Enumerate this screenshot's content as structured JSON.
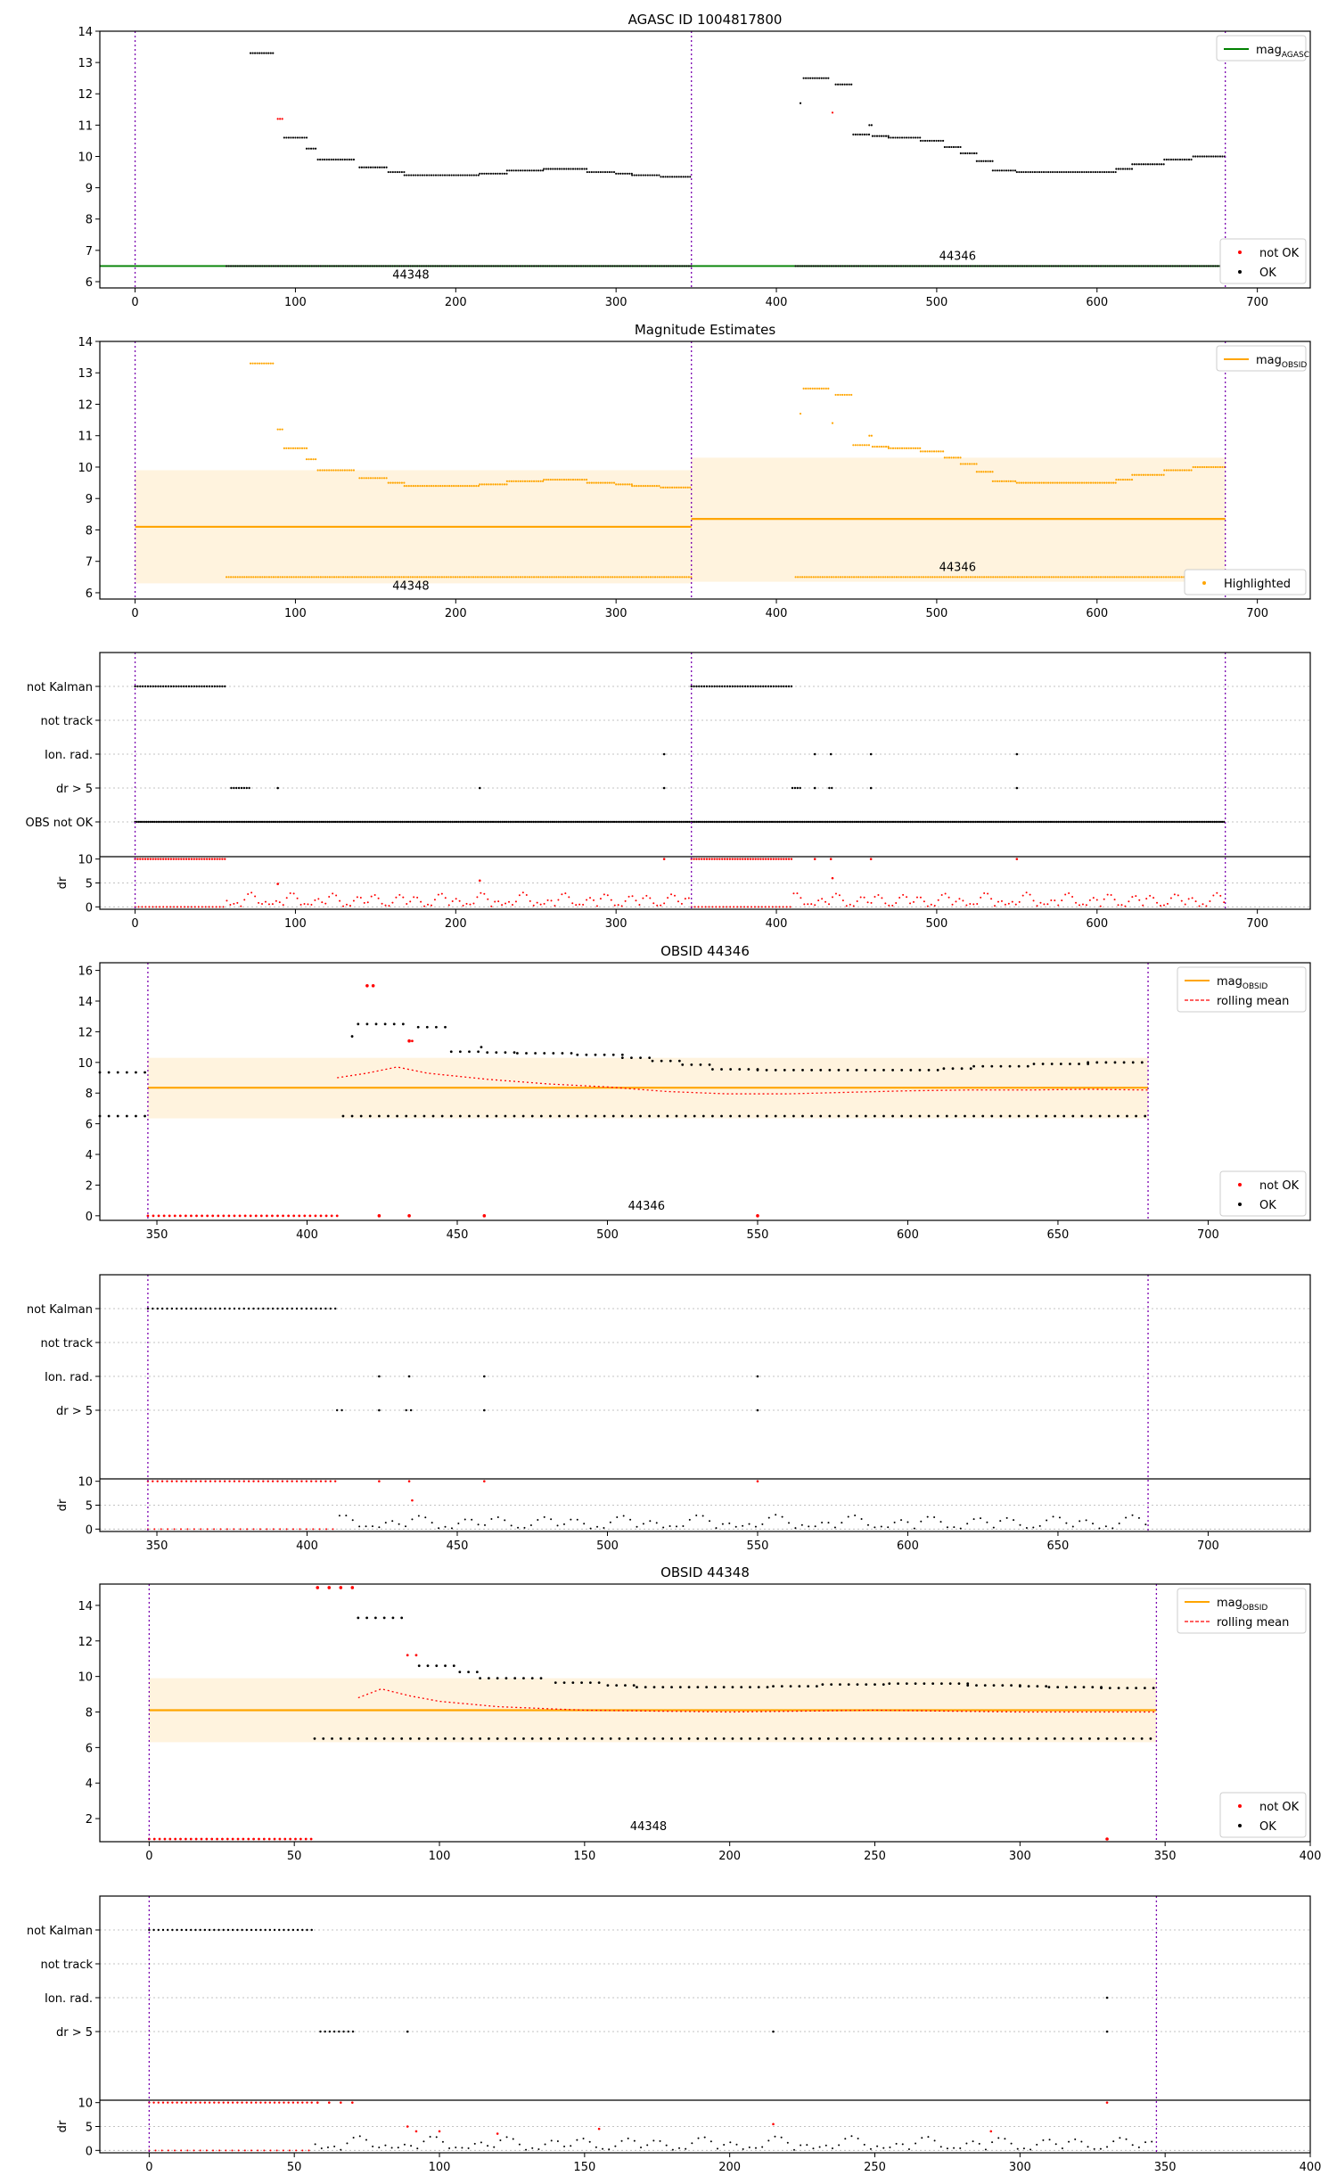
{
  "chart_data": [
    {
      "id": "p1",
      "type": "scatter",
      "title": "AGASC ID 1004817800",
      "xlim": [
        -22,
        733
      ],
      "ylim": [
        5.8,
        14
      ],
      "xticks": [
        0,
        100,
        200,
        300,
        400,
        500,
        600,
        700
      ],
      "yticks": [
        6,
        7,
        8,
        9,
        10,
        11,
        12,
        13,
        14
      ],
      "obs_boundaries": [
        0,
        347,
        680
      ],
      "obs_labels": [
        {
          "text": "44348",
          "x": 172,
          "y": 6.1
        },
        {
          "text": "44346",
          "x": 513,
          "y": 6.7
        }
      ],
      "hline": {
        "value": 6.5,
        "x": [
          -22,
          713
        ],
        "color": "#008000",
        "name": "mag_AGASC"
      },
      "legend_top": [
        {
          "label": "mag",
          "sub": "AGASC",
          "kind": "line",
          "color": "#008000"
        }
      ],
      "legend_bottom": [
        {
          "label": "not OK",
          "kind": "dot",
          "color": "#ff0000"
        },
        {
          "label": "OK",
          "kind": "dot",
          "color": "#000000"
        }
      ],
      "steps": [
        {
          "x0": 72,
          "x1": 87,
          "y": 13.3,
          "color": "#000"
        },
        {
          "x0": 89,
          "x1": 92,
          "y": 11.2,
          "color": "#ff0000"
        },
        {
          "x0": 93,
          "x1": 107,
          "y": 10.6,
          "color": "#000"
        },
        {
          "x0": 107,
          "x1": 113,
          "y": 10.25,
          "color": "#000"
        },
        {
          "x0": 114,
          "x1": 137,
          "y": 9.9,
          "color": "#000"
        },
        {
          "x0": 140,
          "x1": 157,
          "y": 9.65,
          "color": "#000"
        },
        {
          "x0": 158,
          "x1": 168,
          "y": 9.5,
          "color": "#000"
        },
        {
          "x0": 168,
          "x1": 215,
          "y": 9.4,
          "color": "#000"
        },
        {
          "x0": 215,
          "x1": 232,
          "y": 9.45,
          "color": "#000"
        },
        {
          "x0": 232,
          "x1": 255,
          "y": 9.55,
          "color": "#000"
        },
        {
          "x0": 255,
          "x1": 282,
          "y": 9.6,
          "color": "#000"
        },
        {
          "x0": 282,
          "x1": 300,
          "y": 9.5,
          "color": "#000"
        },
        {
          "x0": 300,
          "x1": 310,
          "y": 9.45,
          "color": "#000"
        },
        {
          "x0": 310,
          "x1": 328,
          "y": 9.4,
          "color": "#000"
        },
        {
          "x0": 328,
          "x1": 347,
          "y": 9.35,
          "color": "#000"
        },
        {
          "x0": 415,
          "x1": 415,
          "y": 11.7,
          "color": "#000"
        },
        {
          "x0": 417,
          "x1": 433,
          "y": 12.5,
          "color": "#000"
        },
        {
          "x0": 435,
          "x1": 436,
          "y": 11.4,
          "color": "#ff0000"
        },
        {
          "x0": 437,
          "x1": 448,
          "y": 12.3,
          "color": "#000"
        },
        {
          "x0": 448,
          "x1": 458,
          "y": 10.7,
          "color": "#000"
        },
        {
          "x0": 458,
          "x1": 460,
          "y": 11.0,
          "color": "#000"
        },
        {
          "x0": 460,
          "x1": 470,
          "y": 10.65,
          "color": "#000"
        },
        {
          "x0": 470,
          "x1": 490,
          "y": 10.6,
          "color": "#000"
        },
        {
          "x0": 490,
          "x1": 505,
          "y": 10.5,
          "color": "#000"
        },
        {
          "x0": 505,
          "x1": 515,
          "y": 10.3,
          "color": "#000"
        },
        {
          "x0": 515,
          "x1": 525,
          "y": 10.1,
          "color": "#000"
        },
        {
          "x0": 525,
          "x1": 535,
          "y": 9.85,
          "color": "#000"
        },
        {
          "x0": 535,
          "x1": 550,
          "y": 9.55,
          "color": "#000"
        },
        {
          "x0": 550,
          "x1": 612,
          "y": 9.5,
          "color": "#000"
        },
        {
          "x0": 612,
          "x1": 622,
          "y": 9.6,
          "color": "#000"
        },
        {
          "x0": 622,
          "x1": 642,
          "y": 9.75,
          "color": "#000"
        },
        {
          "x0": 642,
          "x1": 660,
          "y": 9.9,
          "color": "#000"
        },
        {
          "x0": 660,
          "x1": 680,
          "y": 10.0,
          "color": "#000"
        },
        {
          "x0": 57,
          "x1": 347,
          "y": 6.5,
          "color": "#000"
        },
        {
          "x0": 412,
          "x1": 680,
          "y": 6.5,
          "color": "#000"
        }
      ]
    },
    {
      "id": "p2",
      "type": "scatter",
      "title": "Magnitude Estimates",
      "xlim": [
        -22,
        733
      ],
      "ylim": [
        5.8,
        14
      ],
      "xticks": [
        0,
        100,
        200,
        300,
        400,
        500,
        600,
        700
      ],
      "yticks": [
        6,
        7,
        8,
        9,
        10,
        11,
        12,
        13,
        14
      ],
      "obs_boundaries": [
        0,
        347,
        680
      ],
      "obs_labels": [
        {
          "text": "44348",
          "x": 172,
          "y": 6.1
        },
        {
          "text": "44346",
          "x": 513,
          "y": 6.7
        }
      ],
      "mean_segments": [
        {
          "x0": 0,
          "x1": 347,
          "y": 8.1,
          "lo": 6.3,
          "hi": 9.9
        },
        {
          "x0": 347,
          "x1": 680,
          "y": 8.35,
          "lo": 6.35,
          "hi": 10.3
        }
      ],
      "legend_top": [
        {
          "label": "mag",
          "sub": "OBSID",
          "kind": "line",
          "color": "#ffa500"
        }
      ],
      "legend_bottom": [
        {
          "label": "Highlighted",
          "kind": "dot",
          "color": "#ffa500"
        }
      ],
      "steps_ref": "p1",
      "color": "#ffa500"
    },
    {
      "id": "p3",
      "type": "flags",
      "xlim": [
        -22,
        733
      ],
      "xticks": [
        0,
        100,
        200,
        300,
        400,
        500,
        600,
        700
      ],
      "obs_boundaries": [
        0,
        347,
        680
      ],
      "rows": [
        "not Kalman",
        "not track",
        "Ion. rad.",
        "dr > 5",
        "OBS not OK"
      ],
      "flags": {
        "not Kalman": [
          [
            0,
            57
          ],
          [
            347,
            410
          ]
        ],
        "Ion. rad.": [
          [
            330,
            330
          ],
          [
            424,
            424
          ],
          [
            434,
            434
          ],
          [
            459,
            459
          ],
          [
            550,
            550
          ]
        ],
        "dr > 5": [
          [
            60,
            72
          ],
          [
            89,
            89
          ],
          [
            215,
            215
          ],
          [
            330,
            330
          ],
          [
            410,
            415
          ],
          [
            424,
            424
          ],
          [
            433,
            435
          ],
          [
            459,
            459
          ],
          [
            550,
            550
          ]
        ],
        "OBS not OK": [
          [
            0,
            680
          ]
        ]
      },
      "dr_label": "dr",
      "dr_ylim": [
        -0.5,
        10.5
      ],
      "dr_yticks": [
        0,
        5,
        10
      ],
      "dr_red_ranges": [
        [
          0,
          57
        ],
        [
          347,
          410
        ]
      ],
      "dr_outliers": [
        [
          424,
          10
        ],
        [
          434,
          10
        ],
        [
          459,
          10
        ],
        [
          550,
          10
        ],
        [
          330,
          10
        ],
        [
          215,
          5.5
        ],
        [
          89,
          4.8
        ],
        [
          435,
          6
        ]
      ],
      "dr_all_red": true
    },
    {
      "id": "p4",
      "type": "scatter",
      "title": "OBSID 44346",
      "xlim": [
        331,
        734
      ],
      "ylim": [
        -0.3,
        16.5
      ],
      "xticks": [
        350,
        400,
        450,
        500,
        550,
        600,
        650,
        700
      ],
      "yticks": [
        0,
        2,
        4,
        6,
        8,
        10,
        12,
        14,
        16
      ],
      "obs_boundaries": [
        347,
        680
      ],
      "obs_labels": [
        {
          "text": "44346",
          "x": 513,
          "y": 0.4
        }
      ],
      "mean_segments": [
        {
          "x0": 347,
          "x1": 680,
          "y": 8.35,
          "lo": 6.35,
          "hi": 10.3
        }
      ],
      "legend_top": [
        {
          "label": "mag",
          "sub": "OBSID",
          "kind": "line",
          "color": "#ffa500"
        },
        {
          "label": "rolling mean",
          "kind": "dash",
          "color": "#ff0000"
        }
      ],
      "legend_bottom": [
        {
          "label": "not OK",
          "kind": "dot",
          "color": "#ff0000"
        },
        {
          "label": "OK",
          "kind": "dot",
          "color": "#000000"
        }
      ],
      "zero_red": [
        [
          347,
          410
        ]
      ],
      "red_points": [
        [
          420,
          15
        ],
        [
          422,
          15
        ],
        [
          434,
          11.4
        ],
        [
          424,
          0
        ],
        [
          434,
          0
        ],
        [
          459,
          0
        ],
        [
          550,
          0
        ]
      ],
      "rolling": [
        [
          410,
          9.0
        ],
        [
          420,
          9.3
        ],
        [
          430,
          9.7
        ],
        [
          440,
          9.3
        ],
        [
          460,
          8.9
        ],
        [
          480,
          8.6
        ],
        [
          500,
          8.4
        ],
        [
          520,
          8.1
        ],
        [
          540,
          7.95
        ],
        [
          560,
          7.95
        ],
        [
          580,
          8.05
        ],
        [
          600,
          8.15
        ],
        [
          620,
          8.2
        ],
        [
          640,
          8.2
        ],
        [
          660,
          8.25
        ],
        [
          680,
          8.2
        ]
      ]
    },
    {
      "id": "p5",
      "type": "flags",
      "xlim": [
        331,
        734
      ],
      "xticks": [
        350,
        400,
        450,
        500,
        550,
        600,
        650,
        700
      ],
      "obs_boundaries": [
        347,
        680
      ],
      "rows": [
        "not Kalman",
        "not track",
        "Ion. rad.",
        "dr > 5"
      ],
      "flags": {
        "not Kalman": [
          [
            347,
            410
          ]
        ],
        "Ion. rad.": [
          [
            424,
            424
          ],
          [
            434,
            434
          ],
          [
            459,
            459
          ],
          [
            550,
            550
          ]
        ],
        "dr > 5": [
          [
            410,
            413
          ],
          [
            424,
            424
          ],
          [
            433,
            435
          ],
          [
            459,
            459
          ],
          [
            550,
            550
          ]
        ]
      },
      "dr_label": "dr",
      "dr_ylim": [
        -0.5,
        10.5
      ],
      "dr_yticks": [
        0,
        5,
        10
      ],
      "dr_red_ranges": [
        [
          347,
          410
        ]
      ],
      "dr_outliers": [
        [
          424,
          10
        ],
        [
          434,
          10
        ],
        [
          459,
          10
        ],
        [
          550,
          10
        ],
        [
          435,
          6
        ]
      ],
      "dr_all_red": false
    },
    {
      "id": "p6",
      "type": "scatter",
      "title": "OBSID 44348",
      "xlim": [
        -17,
        400
      ],
      "ylim": [
        0.7,
        15.2
      ],
      "xticks": [
        0,
        50,
        100,
        150,
        200,
        250,
        300,
        350,
        400
      ],
      "yticks": [
        2,
        4,
        6,
        8,
        10,
        12,
        14
      ],
      "obs_boundaries": [
        0,
        347
      ],
      "obs_labels": [
        {
          "text": "44348",
          "x": 172,
          "y": 1.35
        }
      ],
      "mean_segments": [
        {
          "x0": 0,
          "x1": 347,
          "y": 8.1,
          "lo": 6.3,
          "hi": 9.9
        }
      ],
      "legend_top": [
        {
          "label": "mag",
          "sub": "OBSID",
          "kind": "line",
          "color": "#ffa500"
        },
        {
          "label": "rolling mean",
          "kind": "dash",
          "color": "#ff0000"
        }
      ],
      "legend_bottom": [
        {
          "label": "not OK",
          "kind": "dot",
          "color": "#ff0000"
        },
        {
          "label": "OK",
          "kind": "dot",
          "color": "#000000"
        }
      ],
      "zero_red": [
        [
          0,
          57
        ]
      ],
      "zero_level": 0.85,
      "red_points": [
        [
          58,
          15
        ],
        [
          62,
          15
        ],
        [
          66,
          15
        ],
        [
          70,
          15
        ],
        [
          330,
          0.85
        ]
      ],
      "rolling": [
        [
          72,
          8.8
        ],
        [
          80,
          9.3
        ],
        [
          90,
          8.9
        ],
        [
          100,
          8.6
        ],
        [
          120,
          8.3
        ],
        [
          150,
          8.1
        ],
        [
          200,
          8.0
        ],
        [
          250,
          8.1
        ],
        [
          300,
          8.0
        ],
        [
          347,
          8.0
        ]
      ]
    },
    {
      "id": "p7",
      "type": "flags",
      "xlim": [
        -17,
        400
      ],
      "xticks": [
        0,
        50,
        100,
        150,
        200,
        250,
        300,
        350,
        400
      ],
      "obs_boundaries": [
        0,
        347
      ],
      "rows": [
        "not Kalman",
        "not track",
        "Ion. rad.",
        "dr > 5"
      ],
      "flags": {
        "not Kalman": [
          [
            0,
            57
          ]
        ],
        "Ion. rad.": [
          [
            330,
            330
          ]
        ],
        "dr > 5": [
          [
            59,
            71
          ],
          [
            89,
            89
          ],
          [
            215,
            215
          ],
          [
            330,
            330
          ]
        ]
      },
      "dr_label": "dr",
      "dr_ylim": [
        -0.5,
        10.5
      ],
      "dr_yticks": [
        0,
        5,
        10
      ],
      "dr_red_ranges": [
        [
          0,
          57
        ]
      ],
      "dr_outliers": [
        [
          58,
          10
        ],
        [
          62,
          10
        ],
        [
          66,
          10
        ],
        [
          70,
          10
        ],
        [
          330,
          10
        ],
        [
          89,
          5
        ],
        [
          215,
          5.5
        ],
        [
          92,
          4
        ],
        [
          100,
          4
        ],
        [
          120,
          3.5
        ],
        [
          155,
          4.5
        ],
        [
          290,
          4
        ]
      ],
      "dr_all_red": false
    }
  ]
}
